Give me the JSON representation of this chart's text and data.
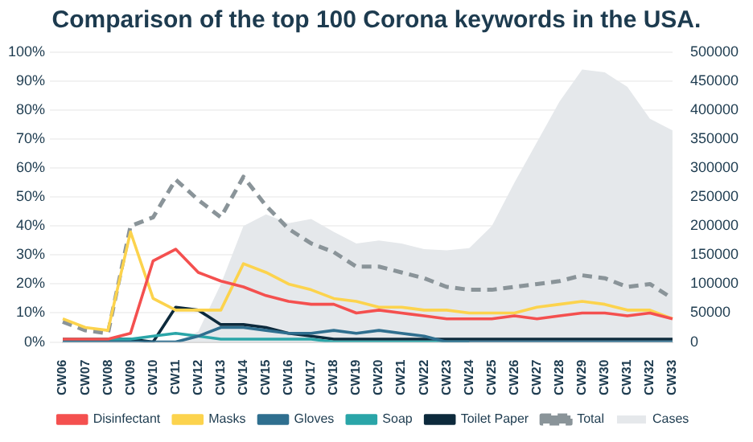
{
  "chart_data": {
    "type": "line",
    "title": "Comparison of the top 100 Corona keywords in the USA.",
    "categories": [
      "CW06",
      "CW07",
      "CW08",
      "CW09",
      "CW10",
      "CW11",
      "CW12",
      "CW13",
      "CW14",
      "CW15",
      "CW16",
      "CW17",
      "CW18",
      "CW19",
      "CW20",
      "CW21",
      "CW22",
      "CW23",
      "CW24",
      "CW25",
      "CW26",
      "CW27",
      "CW28",
      "CW29",
      "CW30",
      "CW31",
      "CW32",
      "CW33"
    ],
    "series": [
      {
        "name": "Disinfectant",
        "color": "#f4504f",
        "values": [
          1,
          1,
          1,
          3,
          28,
          32,
          24,
          21,
          19,
          16,
          14,
          13,
          13,
          10,
          11,
          10,
          9,
          8,
          8,
          8,
          9,
          8,
          9,
          10,
          10,
          9,
          10,
          8
        ]
      },
      {
        "name": "Masks",
        "color": "#fcd34d",
        "values": [
          8,
          5,
          4,
          38,
          15,
          11,
          11,
          11,
          27,
          24,
          20,
          18,
          15,
          14,
          12,
          12,
          11,
          11,
          10,
          10,
          10,
          12,
          13,
          14,
          13,
          11,
          11,
          8
        ]
      },
      {
        "name": "Gloves",
        "color": "#2f6f8f",
        "values": [
          0,
          0,
          0,
          0,
          0,
          0,
          2,
          5,
          5,
          4,
          3,
          3,
          4,
          3,
          4,
          3,
          2,
          0,
          0,
          0,
          0,
          0,
          0,
          0,
          0,
          0,
          0,
          0
        ]
      },
      {
        "name": "Soap",
        "color": "#2aa5a8",
        "values": [
          1,
          1,
          1,
          1,
          2,
          3,
          2,
          1,
          1,
          1,
          1,
          1,
          0,
          0,
          0,
          0,
          0,
          0,
          0,
          null,
          null,
          null,
          null,
          null,
          null,
          null,
          null,
          null
        ]
      },
      {
        "name": "Toilet Paper",
        "color": "#0d2a3c",
        "values": [
          1,
          1,
          1,
          1,
          0,
          12,
          11,
          6,
          6,
          5,
          3,
          2,
          1,
          1,
          1,
          1,
          1,
          1,
          1,
          1,
          1,
          1,
          1,
          1,
          1,
          1,
          1,
          1
        ]
      },
      {
        "name": "Total",
        "color": "#8a9499",
        "line_style": "dashed",
        "values": [
          7,
          4,
          3,
          40,
          43,
          56,
          49,
          43,
          57,
          47,
          39,
          34,
          31,
          26,
          26,
          24,
          22,
          19,
          18,
          18,
          19,
          20,
          21,
          23,
          22,
          19,
          20,
          15
        ]
      },
      {
        "name": "Cases",
        "color": "#e5e8eb",
        "type": "area",
        "axis": "y2",
        "values": [
          0,
          0,
          0,
          0,
          0,
          0,
          18000,
          100000,
          200000,
          220000,
          205000,
          212000,
          190000,
          170000,
          175000,
          170000,
          160000,
          158000,
          162000,
          200000,
          275000,
          345000,
          415000,
          470000,
          465000,
          440000,
          385000,
          365000
        ]
      }
    ],
    "ylim": [
      0,
      100
    ],
    "yticks": [
      {
        "value": 0,
        "label": "0%"
      },
      {
        "value": 10,
        "label": "10%"
      },
      {
        "value": 20,
        "label": "20%"
      },
      {
        "value": 30,
        "label": "30%"
      },
      {
        "value": 40,
        "label": "40%"
      },
      {
        "value": 50,
        "label": "50%"
      },
      {
        "value": 60,
        "label": "60%"
      },
      {
        "value": 70,
        "label": "70%"
      },
      {
        "value": 80,
        "label": "80%"
      },
      {
        "value": 90,
        "label": "90%"
      },
      {
        "value": 100,
        "label": "100%"
      }
    ],
    "y2lim": [
      0,
      500000
    ],
    "y2ticks": [
      0,
      50000,
      100000,
      150000,
      200000,
      250000,
      300000,
      350000,
      400000,
      450000,
      500000
    ],
    "grid": "y",
    "legend": "bottom",
    "marker": "none",
    "line_style": "solid"
  }
}
